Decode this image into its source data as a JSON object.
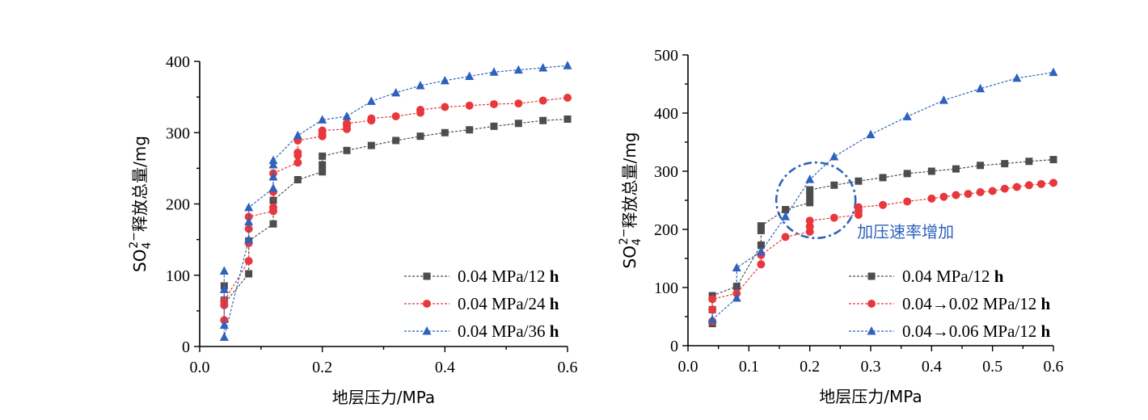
{
  "chart_data": [
    {
      "type": "scatter",
      "xlabel": "地层压力/MPa",
      "ylabel": "SO4²⁻释放总量/mg",
      "xlim": [
        0.0,
        0.6
      ],
      "ylim": [
        0,
        400
      ],
      "x_ticks": [
        0.0,
        0.2,
        0.4,
        0.6
      ],
      "y_ticks": [
        0,
        100,
        200,
        300,
        400
      ],
      "x_tick_labels": [
        "0.0",
        "0.2",
        "0.4",
        "0.6"
      ],
      "y_tick_labels": [
        "0",
        "100",
        "200",
        "300",
        "400"
      ],
      "legend_position": "bottom-right",
      "grid": false,
      "series": [
        {
          "name": "0.04 MPa/12 h",
          "color": "#4d4d4d",
          "marker": "square",
          "points": [
            [
              0.04,
              85
            ],
            [
              0.04,
              65
            ],
            [
              0.04,
              60
            ],
            [
              0.08,
              102
            ],
            [
              0.08,
              148
            ],
            [
              0.12,
              172
            ],
            [
              0.12,
              205
            ],
            [
              0.16,
              234
            ],
            [
              0.2,
              245
            ],
            [
              0.2,
              255
            ],
            [
              0.2,
              267
            ],
            [
              0.24,
              275
            ],
            [
              0.28,
              282
            ],
            [
              0.32,
              289
            ],
            [
              0.36,
              295
            ],
            [
              0.4,
              300
            ],
            [
              0.44,
              304
            ],
            [
              0.48,
              309
            ],
            [
              0.52,
              313
            ],
            [
              0.56,
              317
            ],
            [
              0.6,
              319
            ]
          ]
        },
        {
          "name": "0.04 MPa/24 h",
          "color": "#e8383d",
          "marker": "circle",
          "points": [
            [
              0.04,
              37
            ],
            [
              0.04,
              58
            ],
            [
              0.04,
              64
            ],
            [
              0.08,
              120
            ],
            [
              0.08,
              145
            ],
            [
              0.08,
              165
            ],
            [
              0.08,
              182
            ],
            [
              0.12,
              190
            ],
            [
              0.12,
              195
            ],
            [
              0.12,
              217
            ],
            [
              0.12,
              243
            ],
            [
              0.16,
              258
            ],
            [
              0.16,
              268
            ],
            [
              0.16,
              272
            ],
            [
              0.16,
              289
            ],
            [
              0.2,
              295
            ],
            [
              0.2,
              298
            ],
            [
              0.2,
              303
            ],
            [
              0.24,
              305
            ],
            [
              0.24,
              310
            ],
            [
              0.24,
              313
            ],
            [
              0.28,
              317
            ],
            [
              0.28,
              320
            ],
            [
              0.32,
              323
            ],
            [
              0.36,
              328
            ],
            [
              0.36,
              332
            ],
            [
              0.4,
              336
            ],
            [
              0.44,
              338
            ],
            [
              0.48,
              340
            ],
            [
              0.52,
              341
            ],
            [
              0.56,
              345
            ],
            [
              0.6,
              349
            ]
          ]
        },
        {
          "name": "0.04 MPa/36 h",
          "color": "#2f62bc",
          "marker": "triangle",
          "points": [
            [
              0.04,
              106
            ],
            [
              0.04,
              80
            ],
            [
              0.04,
              30
            ],
            [
              0.04,
              13
            ],
            [
              0.08,
              150
            ],
            [
              0.08,
              175
            ],
            [
              0.08,
              195
            ],
            [
              0.12,
              222
            ],
            [
              0.12,
              238
            ],
            [
              0.12,
              255
            ],
            [
              0.12,
              261
            ],
            [
              0.16,
              296
            ],
            [
              0.2,
              318
            ],
            [
              0.24,
              323
            ],
            [
              0.28,
              344
            ],
            [
              0.32,
              356
            ],
            [
              0.36,
              366
            ],
            [
              0.4,
              373
            ],
            [
              0.44,
              379
            ],
            [
              0.48,
              385
            ],
            [
              0.52,
              388
            ],
            [
              0.56,
              391
            ],
            [
              0.6,
              394
            ]
          ]
        }
      ]
    },
    {
      "type": "scatter",
      "xlabel": "地层压力/MPa",
      "ylabel": "SO4²⁻释放总量/mg",
      "xlim": [
        0.0,
        0.6
      ],
      "ylim": [
        0,
        500
      ],
      "x_ticks": [
        0.0,
        0.1,
        0.2,
        0.3,
        0.4,
        0.5,
        0.6
      ],
      "y_ticks": [
        0,
        100,
        200,
        300,
        400,
        500
      ],
      "x_tick_labels": [
        "0.0",
        "0.1",
        "0.2",
        "0.3",
        "0.4",
        "0.5",
        "0.6"
      ],
      "y_tick_labels": [
        "0",
        "100",
        "200",
        "300",
        "400",
        "500"
      ],
      "legend_position": "bottom-right",
      "grid": false,
      "annotation": {
        "text": "加压速率增加",
        "color": "#2f62bc",
        "shape": "dash-dot ellipse",
        "ellipse_center": [
          0.21,
          250
        ],
        "ellipse_x_halfwidth": 0.065,
        "ellipse_y_halfheight": 65
      },
      "series": [
        {
          "name": "0.04 MPa/12 h",
          "color": "#4d4d4d",
          "marker": "square",
          "points": [
            [
              0.04,
              38
            ],
            [
              0.04,
              62
            ],
            [
              0.04,
              86
            ],
            [
              0.08,
              102
            ],
            [
              0.12,
              173
            ],
            [
              0.12,
              198
            ],
            [
              0.12,
              206
            ],
            [
              0.16,
              234
            ],
            [
              0.2,
              246
            ],
            [
              0.2,
              258
            ],
            [
              0.2,
              268
            ],
            [
              0.24,
              276
            ],
            [
              0.28,
              283
            ],
            [
              0.32,
              289
            ],
            [
              0.36,
              296
            ],
            [
              0.4,
              300
            ],
            [
              0.44,
              304
            ],
            [
              0.48,
              310
            ],
            [
              0.52,
              313
            ],
            [
              0.56,
              317
            ],
            [
              0.6,
              320
            ]
          ]
        },
        {
          "name": "0.04→0.02 MPa/12 h",
          "color": "#e8383d",
          "marker": "circle",
          "points": [
            [
              0.04,
              42
            ],
            [
              0.04,
              62
            ],
            [
              0.04,
              80
            ],
            [
              0.08,
              90
            ],
            [
              0.12,
              140
            ],
            [
              0.12,
              156
            ],
            [
              0.16,
              187
            ],
            [
              0.2,
              196
            ],
            [
              0.2,
              205
            ],
            [
              0.2,
              215
            ],
            [
              0.24,
              220
            ],
            [
              0.28,
              225
            ],
            [
              0.28,
              232
            ],
            [
              0.28,
              238
            ],
            [
              0.32,
              242
            ],
            [
              0.36,
              248
            ],
            [
              0.4,
              253
            ],
            [
              0.42,
              256
            ],
            [
              0.44,
              259
            ],
            [
              0.46,
              261
            ],
            [
              0.48,
              264
            ],
            [
              0.5,
              266
            ],
            [
              0.52,
              270
            ],
            [
              0.54,
              273
            ],
            [
              0.56,
              276
            ],
            [
              0.58,
              278
            ],
            [
              0.6,
              280
            ]
          ]
        },
        {
          "name": "0.04→0.06 MPa/12 h",
          "color": "#2f62bc",
          "marker": "triangle",
          "points": [
            [
              0.04,
              45
            ],
            [
              0.08,
              82
            ],
            [
              0.08,
              134
            ],
            [
              0.12,
              162
            ],
            [
              0.16,
              222
            ],
            [
              0.2,
              286
            ],
            [
              0.24,
              325
            ],
            [
              0.3,
              363
            ],
            [
              0.36,
              394
            ],
            [
              0.42,
              422
            ],
            [
              0.48,
              442
            ],
            [
              0.54,
              460
            ],
            [
              0.6,
              470
            ]
          ]
        }
      ]
    }
  ]
}
